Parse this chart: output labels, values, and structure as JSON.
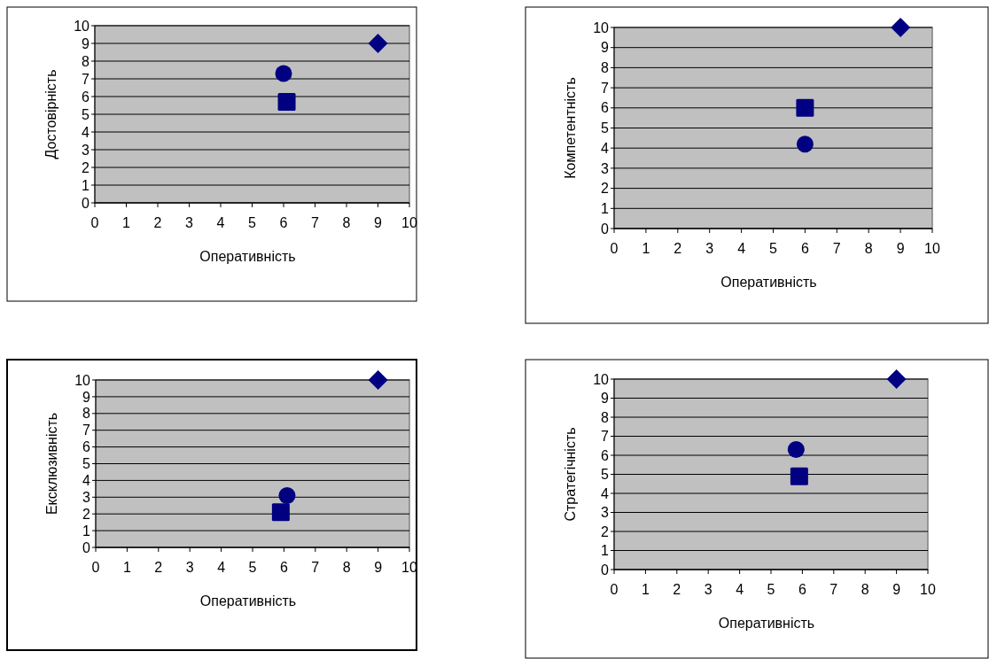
{
  "chart_data": [
    {
      "type": "scatter",
      "xlabel": "Оперативність",
      "ylabel": "Достовірність",
      "xlim": [
        0,
        10
      ],
      "ylim": [
        0,
        10
      ],
      "xticks": [
        0,
        1,
        2,
        3,
        4,
        5,
        6,
        7,
        8,
        9,
        10
      ],
      "yticks": [
        0,
        1,
        2,
        3,
        4,
        5,
        6,
        7,
        8,
        9,
        10
      ],
      "grid": "y",
      "series": [
        {
          "color": "#000080",
          "marker": "diamond",
          "x": [
            9
          ],
          "values": [
            9
          ]
        },
        {
          "color": "#000080",
          "marker": "circle",
          "x": [
            6
          ],
          "values": [
            7.3
          ]
        },
        {
          "color": "#000080",
          "marker": "square",
          "x": [
            6.1
          ],
          "values": [
            5.7
          ]
        }
      ]
    },
    {
      "type": "scatter",
      "xlabel": "Оперативність",
      "ylabel": "Компетентність",
      "xlim": [
        0,
        10
      ],
      "ylim": [
        0,
        10
      ],
      "xticks": [
        0,
        1,
        2,
        3,
        4,
        5,
        6,
        7,
        8,
        9,
        10
      ],
      "yticks": [
        0,
        1,
        2,
        3,
        4,
        5,
        6,
        7,
        8,
        9,
        10
      ],
      "grid": "y",
      "series": [
        {
          "color": "#000080",
          "marker": "diamond",
          "x": [
            9
          ],
          "values": [
            10
          ]
        },
        {
          "color": "#000080",
          "marker": "circle",
          "x": [
            6
          ],
          "values": [
            4.2
          ]
        },
        {
          "color": "#000080",
          "marker": "square",
          "x": [
            6
          ],
          "values": [
            6
          ]
        }
      ]
    },
    {
      "type": "scatter",
      "xlabel": "Оперативність",
      "ylabel": "Ексклюзивність",
      "xlim": [
        0,
        10
      ],
      "ylim": [
        0,
        10
      ],
      "xticks": [
        0,
        1,
        2,
        3,
        4,
        5,
        6,
        7,
        8,
        9,
        10
      ],
      "yticks": [
        0,
        1,
        2,
        3,
        4,
        5,
        6,
        7,
        8,
        9,
        10
      ],
      "grid": "y",
      "series": [
        {
          "color": "#000080",
          "marker": "diamond",
          "x": [
            9
          ],
          "values": [
            10
          ]
        },
        {
          "color": "#000080",
          "marker": "circle",
          "x": [
            6.1
          ],
          "values": [
            3.1
          ]
        },
        {
          "color": "#000080",
          "marker": "square",
          "x": [
            5.9
          ],
          "values": [
            2.1
          ]
        }
      ]
    },
    {
      "type": "scatter",
      "xlabel": "Оперативність",
      "ylabel": "Стратегічність",
      "xlim": [
        0,
        10
      ],
      "ylim": [
        0,
        10
      ],
      "xticks": [
        0,
        1,
        2,
        3,
        4,
        5,
        6,
        7,
        8,
        9,
        10
      ],
      "yticks": [
        0,
        1,
        2,
        3,
        4,
        5,
        6,
        7,
        8,
        9,
        10
      ],
      "grid": "y",
      "series": [
        {
          "color": "#000080",
          "marker": "diamond",
          "x": [
            9
          ],
          "values": [
            10
          ]
        },
        {
          "color": "#000080",
          "marker": "circle",
          "x": [
            5.8
          ],
          "values": [
            6.3
          ]
        },
        {
          "color": "#000080",
          "marker": "square",
          "x": [
            5.9
          ],
          "values": [
            4.9
          ]
        }
      ]
    }
  ]
}
